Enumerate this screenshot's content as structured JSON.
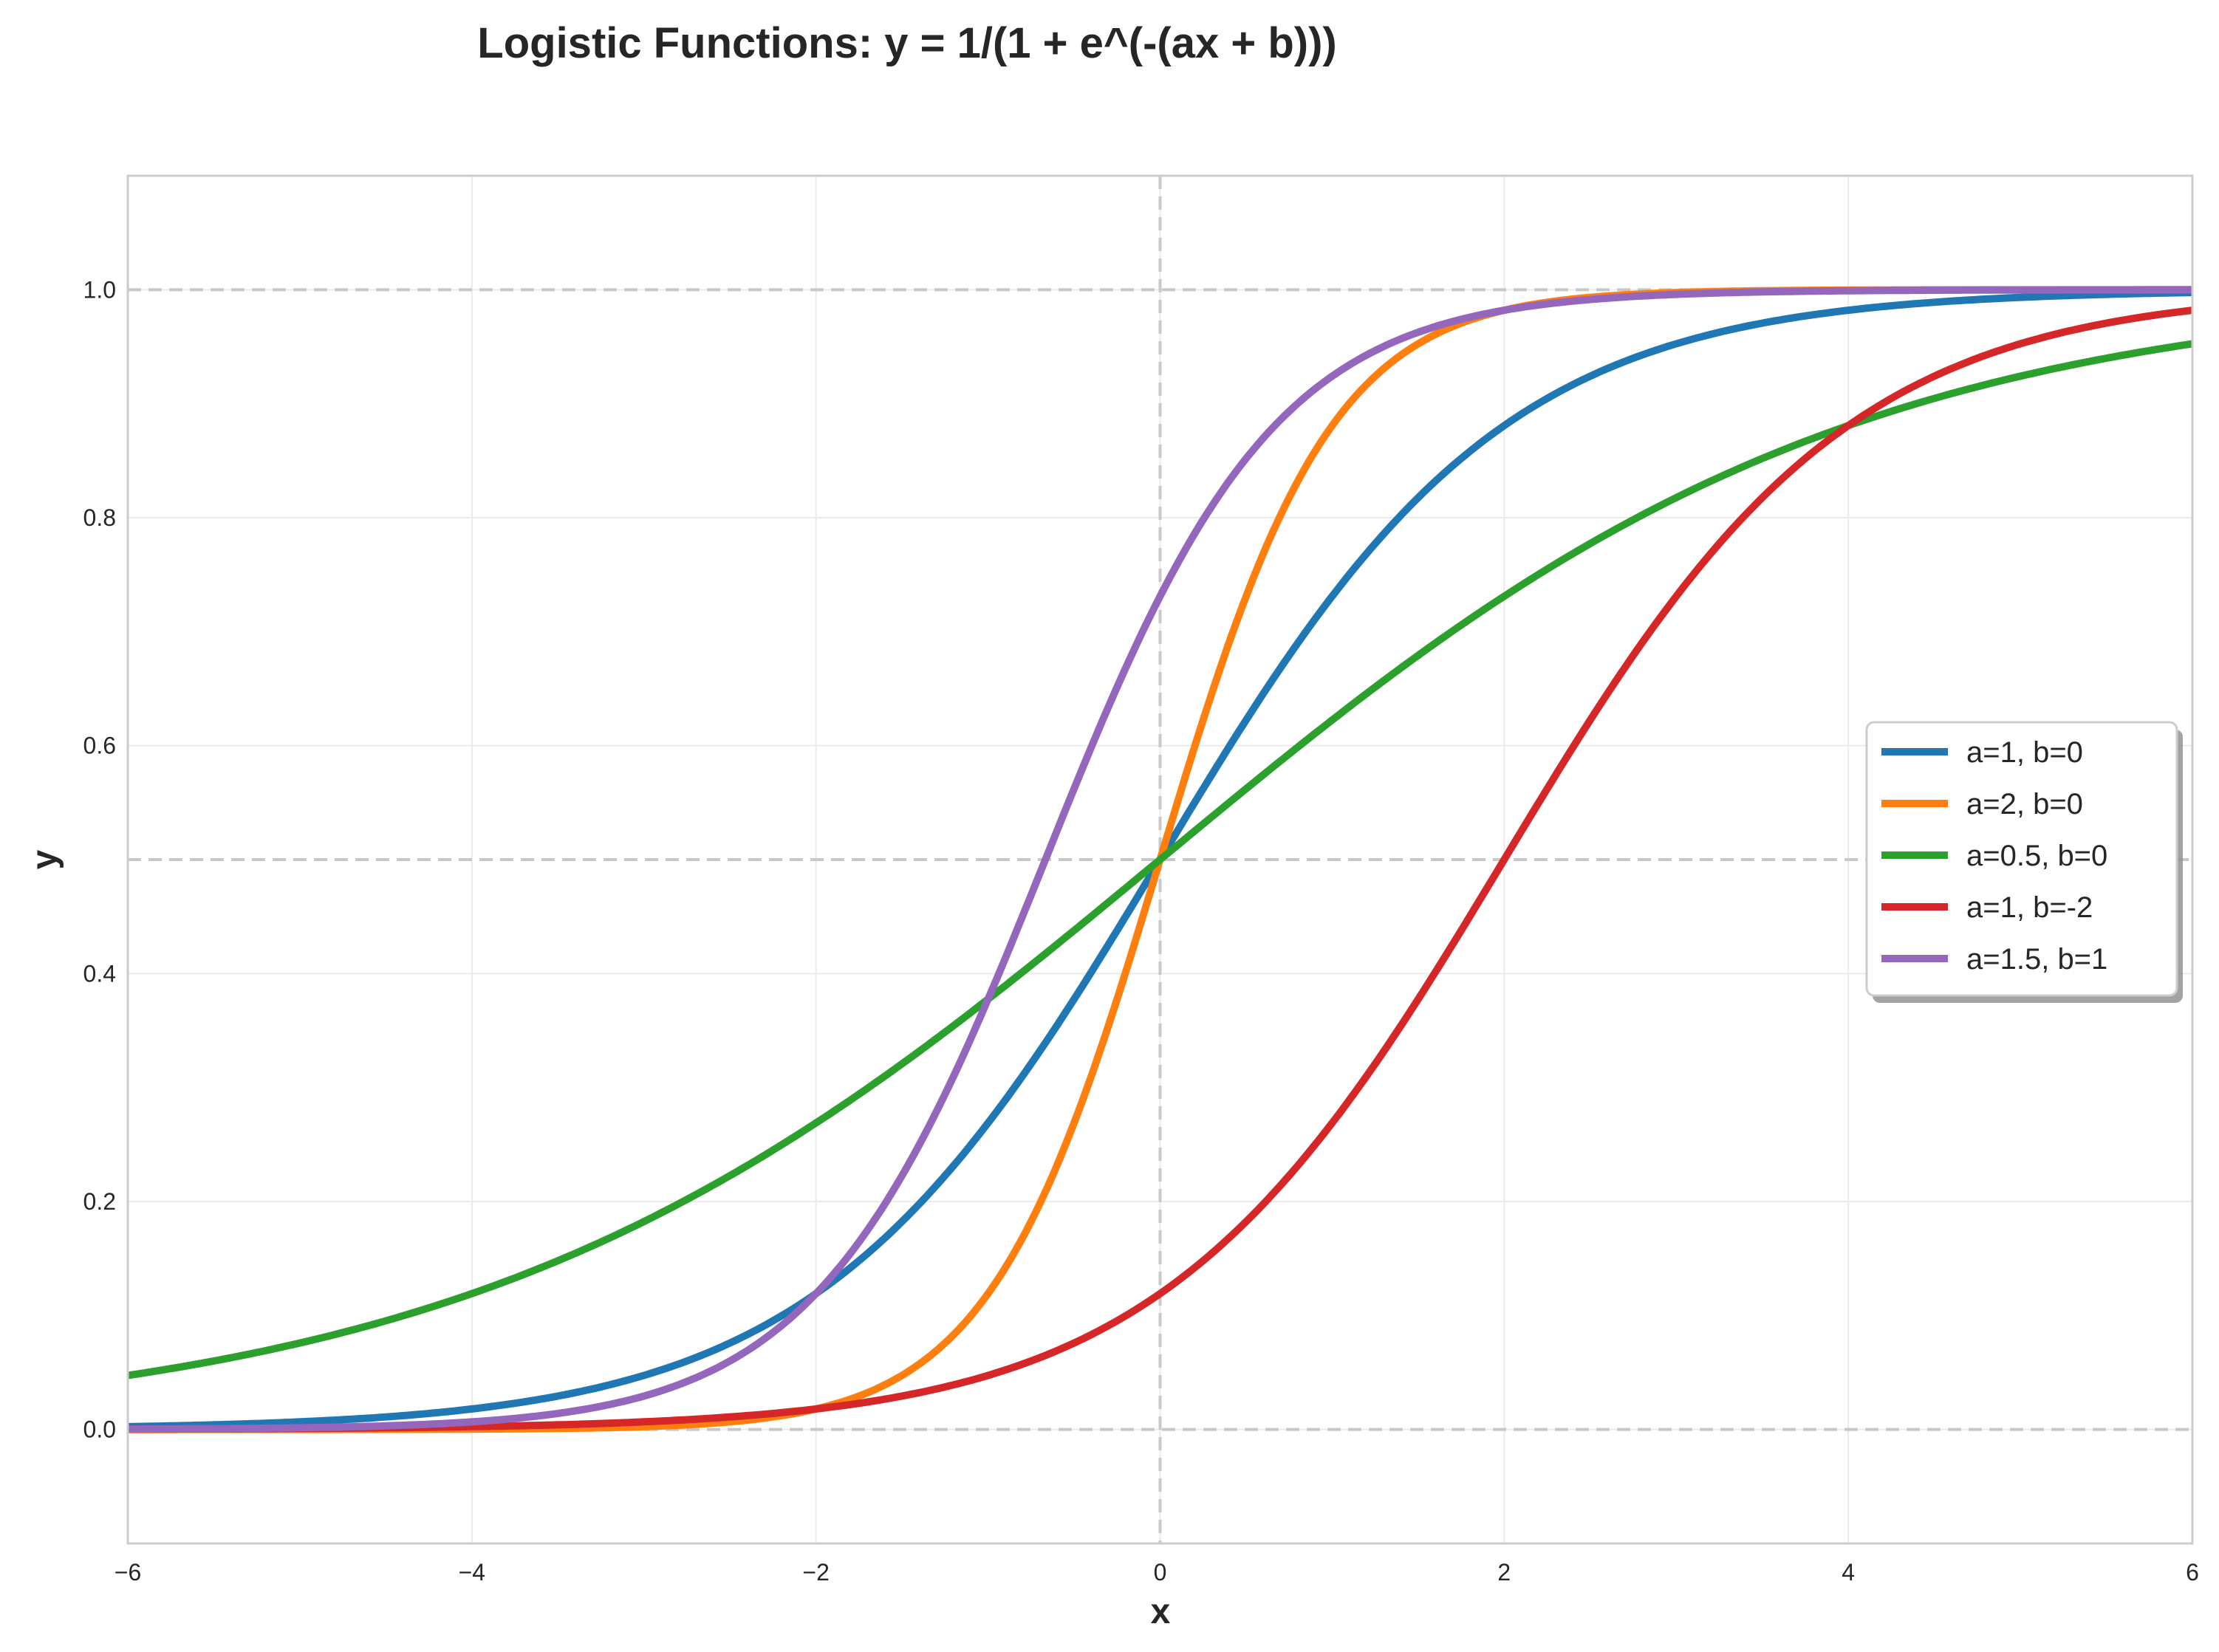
{
  "chart_data": {
    "type": "line",
    "title": "Logistic Functions: y = 1/(1 + e^(-(ax + b)))",
    "xlabel": "x",
    "ylabel": "y",
    "xlim": [
      -6,
      6
    ],
    "ylim": [
      -0.1,
      1.1
    ],
    "xticks": [
      -6,
      -4,
      -2,
      0,
      2,
      4,
      6
    ],
    "xtick_labels": [
      "−6",
      "−4",
      "−2",
      "0",
      "2",
      "4",
      "6"
    ],
    "yticks": [
      0.0,
      0.2,
      0.4,
      0.6,
      0.8,
      1.0
    ],
    "ytick_labels": [
      "0.0",
      "0.2",
      "0.4",
      "0.6",
      "0.8",
      "1.0"
    ],
    "grid": true,
    "reference_lines": {
      "horizontal": [
        0,
        0.5,
        1
      ],
      "vertical": [
        0
      ],
      "style": "dashed"
    },
    "legend_position": "center-right",
    "series": [
      {
        "name": "a=1, b=0",
        "a": 1,
        "b": 0,
        "color": "#1f77b4"
      },
      {
        "name": "a=2, b=0",
        "a": 2,
        "b": 0,
        "color": "#ff7f0e"
      },
      {
        "name": "a=0.5, b=0",
        "a": 0.5,
        "b": 0,
        "color": "#2ca02c"
      },
      {
        "name": "a=1, b=-2",
        "a": 1,
        "b": -2,
        "color": "#d62728"
      },
      {
        "name": "a=1.5, b=1",
        "a": 1.5,
        "b": 1,
        "color": "#9467bd"
      }
    ]
  }
}
